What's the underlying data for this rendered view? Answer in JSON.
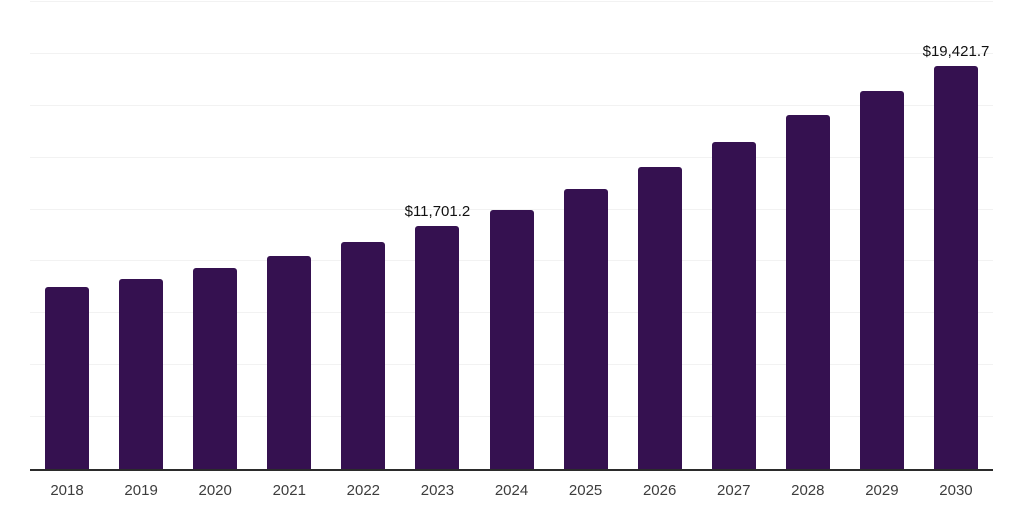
{
  "chart_data": {
    "type": "bar",
    "title": "",
    "xlabel": "",
    "ylabel": "",
    "categories": [
      "2018",
      "2019",
      "2020",
      "2021",
      "2022",
      "2023",
      "2024",
      "2025",
      "2026",
      "2027",
      "2028",
      "2029",
      "2030"
    ],
    "values": [
      8750,
      9150,
      9670,
      10260,
      10920,
      11701.2,
      12490,
      13470,
      14570,
      15740,
      17060,
      18200,
      19421.7
    ],
    "value_labels": [
      {
        "category": "2023",
        "text": "$11,701.2"
      },
      {
        "category": "2030",
        "text": "$19,421.7"
      }
    ],
    "ylim": [
      0,
      22500
    ],
    "gridline_step": 2500,
    "grid": "horizontal",
    "legend": "none",
    "bar_color": "#351150",
    "gridline_color": "#f2f2f2",
    "axis_line_color": "#2b2b2b",
    "tick_label_color": "#3d3d3d",
    "value_label_color": "#111111"
  }
}
